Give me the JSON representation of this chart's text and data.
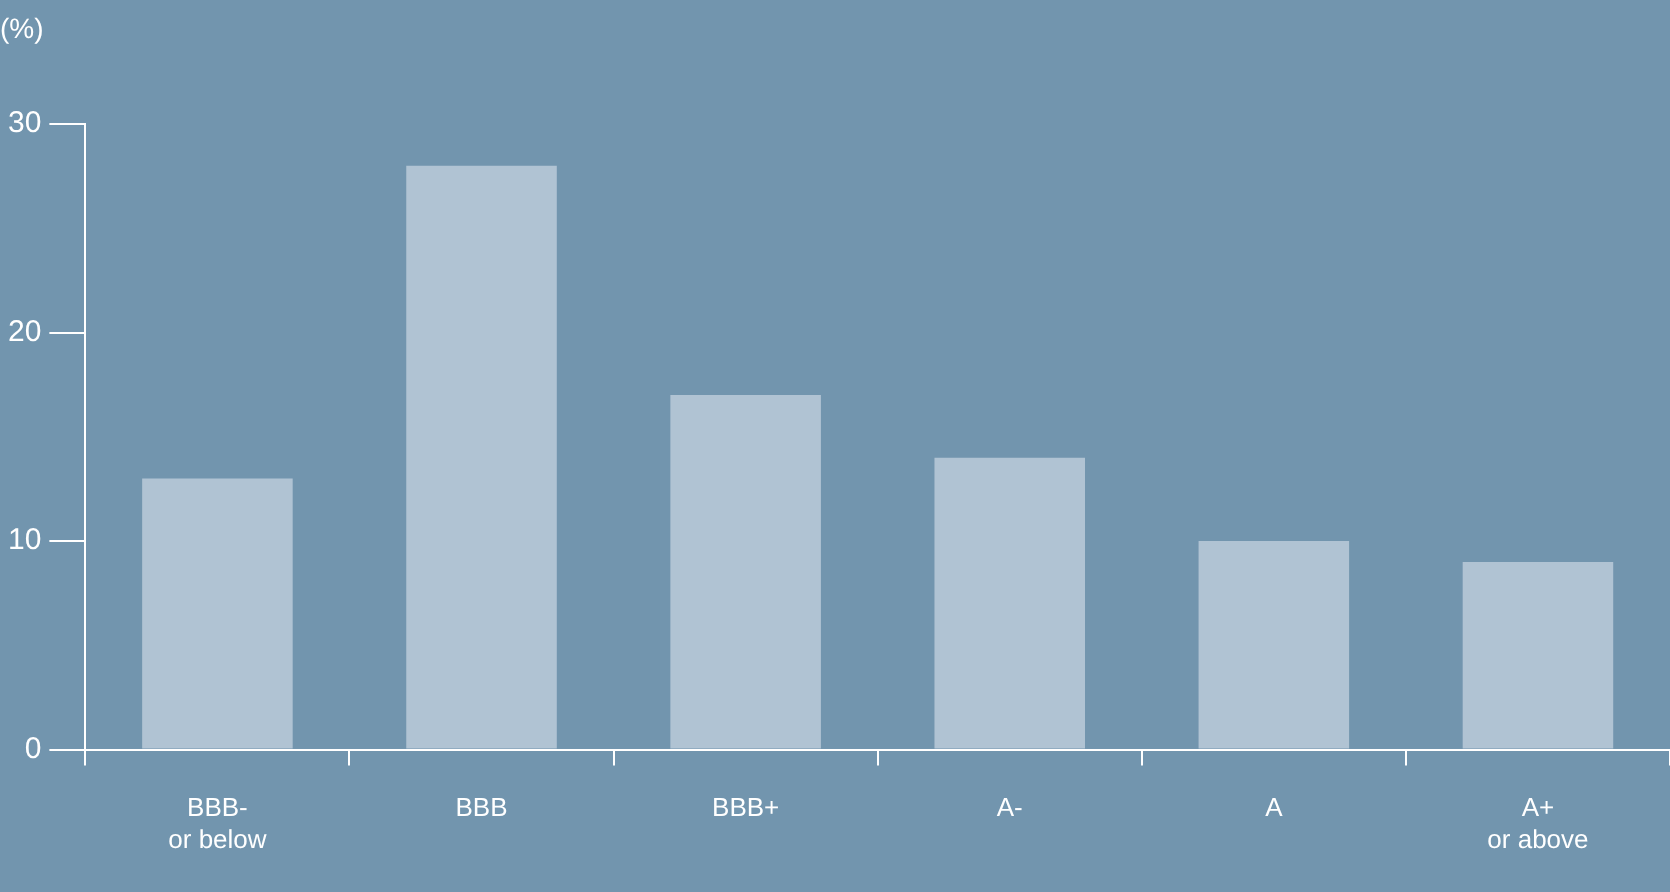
{
  "chart_data": {
    "type": "bar",
    "ylabel": "(%)",
    "categories": [
      "BBB-\nor below",
      "BBB",
      "BBB+",
      "A-",
      "A",
      "A+\nor above"
    ],
    "values": [
      13,
      28,
      17,
      14,
      10,
      9
    ],
    "color": "#b0c3d3",
    "ylim": [
      0,
      30
    ],
    "yticks": [
      0,
      10,
      20,
      30
    ],
    "grid": false
  }
}
